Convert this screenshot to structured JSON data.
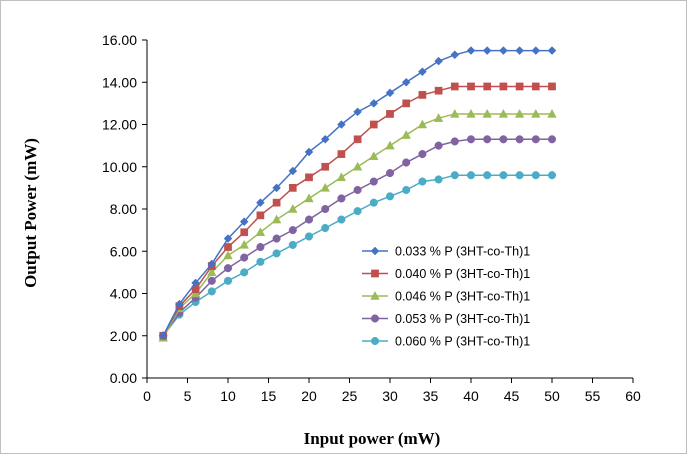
{
  "chart_data": {
    "type": "line",
    "title": "",
    "xlabel": "Input power (mW)",
    "ylabel": "Output Power (mW)",
    "xlim": [
      0,
      60
    ],
    "ylim": [
      0,
      16
    ],
    "x_ticks": [
      "0",
      "5",
      "10",
      "15",
      "20",
      "25",
      "30",
      "35",
      "40",
      "45",
      "50",
      "55",
      "60"
    ],
    "y_ticks": [
      "0.00",
      "2.00",
      "4.00",
      "6.00",
      "8.00",
      "10.00",
      "12.00",
      "14.00",
      "16.00"
    ],
    "grid": false,
    "legend_position": "lower-right",
    "x": [
      2,
      4,
      6,
      8,
      10,
      12,
      14,
      16,
      18,
      20,
      22,
      24,
      26,
      28,
      30,
      32,
      34,
      36,
      38,
      40,
      42,
      44,
      46,
      48,
      50
    ],
    "series": [
      {
        "name": "0.033 % P (3HT-co-Th)1",
        "color": "#4472c4",
        "marker": "diamond",
        "values": [
          2.0,
          3.5,
          4.5,
          5.4,
          6.6,
          7.4,
          8.3,
          9.0,
          9.8,
          10.7,
          11.3,
          12.0,
          12.6,
          13.0,
          13.5,
          14.0,
          14.5,
          15.0,
          15.3,
          15.5,
          15.5,
          15.5,
          15.5,
          15.5,
          15.5
        ]
      },
      {
        "name": "0.040 % P (3HT-co-Th)1",
        "color": "#c0504d",
        "marker": "square",
        "values": [
          2.0,
          3.4,
          4.2,
          5.3,
          6.2,
          6.9,
          7.7,
          8.3,
          9.0,
          9.5,
          10.0,
          10.6,
          11.3,
          12.0,
          12.5,
          13.0,
          13.4,
          13.6,
          13.8,
          13.8,
          13.8,
          13.8,
          13.8,
          13.8,
          13.8
        ]
      },
      {
        "name": "0.046 % P (3HT-co-Th)1",
        "color": "#9bbb59",
        "marker": "triangle",
        "values": [
          1.9,
          3.3,
          4.0,
          5.0,
          5.8,
          6.3,
          6.9,
          7.5,
          8.0,
          8.5,
          9.0,
          9.5,
          10.0,
          10.5,
          11.0,
          11.5,
          12.0,
          12.3,
          12.5,
          12.5,
          12.5,
          12.5,
          12.5,
          12.5,
          12.5
        ]
      },
      {
        "name": "0.053 % P (3HT-co-Th)1",
        "color": "#8064a2",
        "marker": "circle",
        "values": [
          2.0,
          3.1,
          3.8,
          4.6,
          5.2,
          5.7,
          6.2,
          6.6,
          7.0,
          7.5,
          8.0,
          8.5,
          8.9,
          9.3,
          9.7,
          10.2,
          10.6,
          11.0,
          11.2,
          11.3,
          11.3,
          11.3,
          11.3,
          11.3,
          11.3
        ]
      },
      {
        "name": "0.060 % P (3HT-co-Th)1",
        "color": "#4bacc6",
        "marker": "circle",
        "values": [
          2.0,
          3.0,
          3.6,
          4.1,
          4.6,
          5.0,
          5.5,
          5.9,
          6.3,
          6.7,
          7.1,
          7.5,
          7.9,
          8.3,
          8.6,
          8.9,
          9.3,
          9.4,
          9.6,
          9.6,
          9.6,
          9.6,
          9.6,
          9.6,
          9.6
        ]
      }
    ]
  }
}
